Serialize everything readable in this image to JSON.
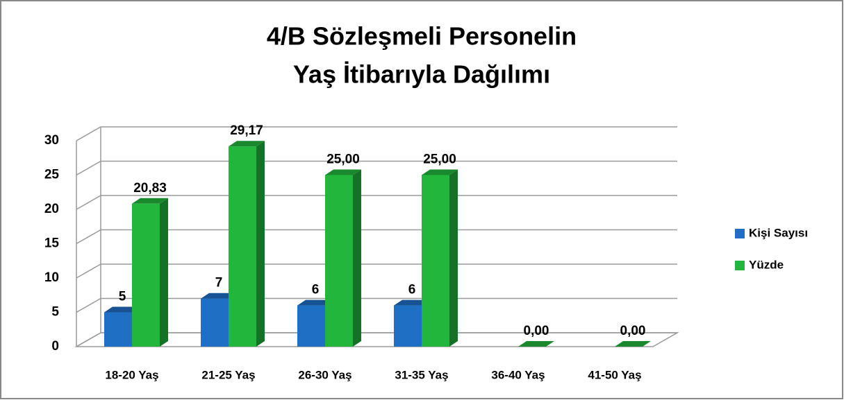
{
  "chart_data": {
    "type": "bar3d",
    "title": [
      "4/B Sözleşmeli Personelin",
      "Yaş İtibarıyla Dağılımı"
    ],
    "categories": [
      "18-20 Yaş",
      "21-25 Yaş",
      "26-30 Yaş",
      "31-35 Yaş",
      "36-40 Yaş",
      "41-50 Yaş"
    ],
    "series": [
      {
        "name": "Kişi Sayısı",
        "color": "#1f6fc4",
        "values": [
          5,
          7,
          6,
          6,
          null,
          null
        ]
      },
      {
        "name": "Yüzde",
        "color": "#22b73c",
        "values": [
          20.83,
          29.17,
          25,
          25,
          0,
          0
        ],
        "value_labels": [
          "20,83",
          "29,17",
          "25,00",
          "25,00",
          "0,00",
          "0,00"
        ]
      }
    ],
    "ylim": [
      0,
      30
    ],
    "yticks": [
      0,
      5,
      10,
      15,
      20,
      25,
      30
    ],
    "grid": true,
    "legend": "right"
  }
}
